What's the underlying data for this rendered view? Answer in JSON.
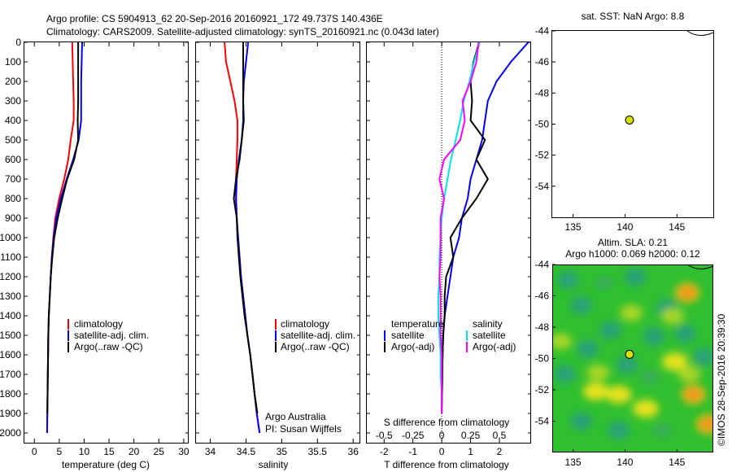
{
  "header": {
    "line1": "Argo profile: CS 5904913_62 20-Sep-2016 20160921_172 49.737S 140.436E",
    "line2": "Climatology: CARS2009. Satellite-adjusted climatology: synTS_20160921.nc (0.043d later)"
  },
  "watermark": "©IMOS 28-Sep-2016 20:39:30",
  "colors": {
    "climatology": "#ff0000",
    "satellite": "#0000ff",
    "argo": "#000000",
    "sal_satellite": "#00e5e5",
    "sal_argo": "#ff00ff",
    "float_marker": "#d8e000"
  },
  "chart_data": [
    {
      "id": "temperature",
      "type": "line",
      "xlabel": "temperature (deg C)",
      "ylabel": "",
      "xlim": [
        -2,
        31
      ],
      "ylim": [
        2050,
        0
      ],
      "xticks": [
        "0",
        "5",
        "10",
        "15",
        "20",
        "25",
        "30"
      ],
      "yticks": [
        "0",
        "100",
        "200",
        "300",
        "400",
        "500",
        "600",
        "700",
        "800",
        "900",
        "1000",
        "1100",
        "1200",
        "1300",
        "1400",
        "1500",
        "1600",
        "1700",
        "1800",
        "1900",
        "2000"
      ],
      "legend": [
        "climatology",
        "satellite-adj. clim.",
        "Argo(..raw -QC)"
      ],
      "series": [
        {
          "name": "climatology",
          "color": "#ff0000",
          "x": [
            7.6,
            7.7,
            7.8,
            7.9,
            7.9,
            7.3,
            6.8,
            6.0,
            5.0,
            4.2,
            3.8,
            3.5,
            3.3,
            3.1,
            2.9,
            2.8,
            2.75,
            2.7,
            2.65,
            2.6,
            2.55
          ],
          "y": [
            0,
            100,
            200,
            300,
            400,
            500,
            600,
            700,
            800,
            900,
            1000,
            1100,
            1200,
            1300,
            1400,
            1500,
            1600,
            1700,
            1800,
            1900,
            2000
          ]
        },
        {
          "name": "satellite-adj. clim.",
          "color": "#0000ff",
          "x": [
            9.6,
            9.5,
            9.4,
            9.4,
            9.4,
            8.9,
            7.8,
            6.5,
            5.3,
            4.4,
            3.9,
            3.5,
            3.3,
            3.1,
            2.9,
            2.8,
            2.75,
            2.7,
            2.65,
            2.6,
            2.55
          ],
          "y": [
            0,
            100,
            200,
            300,
            400,
            500,
            600,
            700,
            800,
            900,
            1000,
            1100,
            1200,
            1300,
            1400,
            1500,
            1600,
            1700,
            1800,
            1900,
            2000
          ]
        },
        {
          "name": "Argo(..raw -QC)",
          "color": "#000000",
          "x": [
            8.8,
            8.8,
            8.8,
            8.8,
            8.7,
            8.8,
            8.0,
            6.6,
            5.6,
            4.7,
            4.0,
            3.6,
            3.3,
            3.1,
            2.9,
            2.8,
            2.75,
            2.7,
            2.65,
            2.6
          ],
          "y": [
            0,
            100,
            200,
            300,
            400,
            500,
            600,
            700,
            800,
            900,
            1000,
            1100,
            1200,
            1300,
            1400,
            1500,
            1600,
            1700,
            1800,
            1900
          ]
        }
      ]
    },
    {
      "id": "salinity",
      "type": "line",
      "xlabel": "salinity",
      "ylabel": "",
      "xlim": [
        33.8,
        36.1
      ],
      "ylim": [
        2050,
        0
      ],
      "xticks": [
        "34",
        "34.5",
        "35",
        "35.5",
        "36"
      ],
      "legend": [
        "climatology",
        "satellite-adj. clim.",
        "Argo(..raw -QC)"
      ],
      "annotation": [
        "Argo Australia",
        "PI: Susan Wijffels"
      ],
      "series": [
        {
          "name": "climatology",
          "color": "#ff0000",
          "x": [
            34.2,
            34.22,
            34.28,
            34.34,
            34.38,
            34.38,
            34.37,
            34.36,
            34.36,
            34.37,
            34.39,
            34.41,
            34.43,
            34.46,
            34.49,
            34.52,
            34.56,
            34.59,
            34.62,
            34.65,
            34.69
          ],
          "y": [
            0,
            100,
            200,
            300,
            400,
            500,
            600,
            700,
            800,
            900,
            1000,
            1100,
            1200,
            1300,
            1400,
            1500,
            1600,
            1700,
            1800,
            1900,
            2000
          ]
        },
        {
          "name": "satellite-adj. clim.",
          "color": "#0000ff",
          "x": [
            34.53,
            34.5,
            34.47,
            34.46,
            34.46,
            34.44,
            34.4,
            34.37,
            34.36,
            34.37,
            34.39,
            34.41,
            34.43,
            34.46,
            34.49,
            34.52,
            34.56,
            34.59,
            34.62,
            34.65,
            34.69
          ],
          "y": [
            0,
            100,
            200,
            300,
            400,
            500,
            600,
            700,
            800,
            900,
            1000,
            1100,
            1200,
            1300,
            1400,
            1500,
            1600,
            1700,
            1800,
            1900,
            2000
          ]
        },
        {
          "name": "Argo(..raw -QC)",
          "color": "#000000",
          "x": [
            34.46,
            34.46,
            34.46,
            34.46,
            34.47,
            34.44,
            34.41,
            34.36,
            34.33,
            34.37,
            34.38,
            34.4,
            34.42,
            34.45,
            34.48,
            34.52,
            34.56,
            34.59,
            34.62,
            34.66
          ],
          "y": [
            0,
            100,
            200,
            300,
            400,
            500,
            600,
            700,
            800,
            900,
            1000,
            1100,
            1200,
            1300,
            1400,
            1500,
            1600,
            1700,
            1800,
            1900
          ]
        }
      ]
    },
    {
      "id": "differences",
      "type": "line",
      "xlabel": "T difference from climatology",
      "x2label": "S difference from climatology",
      "xlim": [
        -2.6,
        3.1
      ],
      "ylim": [
        2050,
        0
      ],
      "xticks": [
        "-2",
        "-1",
        "0",
        "1",
        "2"
      ],
      "x2ticks": [
        "-0.5",
        "-0.25",
        "0",
        "0.25",
        "0.5"
      ],
      "legend_temperature_title": "temperature",
      "legend_salinity_title": "salinity",
      "legend": [
        "satellite",
        "Argo(-adj)",
        "satellite",
        "Argo(-adj)"
      ],
      "series": [
        {
          "name": "temperature satellite",
          "color": "#0000ff",
          "x": [
            3.0,
            2.4,
            1.9,
            1.6,
            1.5,
            1.4,
            1.2,
            1.0,
            0.9,
            0.7,
            0.6,
            0.4,
            0.3,
            0.2,
            0.1,
            0.05,
            0.03,
            0.02,
            0.01,
            0.0
          ],
          "y": [
            0,
            100,
            200,
            300,
            400,
            500,
            600,
            700,
            800,
            900,
            1000,
            1100,
            1200,
            1300,
            1400,
            1500,
            1600,
            1700,
            1800,
            1900
          ]
        },
        {
          "name": "temperature Argo(-adj)",
          "color": "#000000",
          "x": [
            1.3,
            1.1,
            1.0,
            1.05,
            1.0,
            1.5,
            1.2,
            1.6,
            1.2,
            0.7,
            0.3,
            0.4,
            0.15,
            0.1,
            0.1,
            0.05,
            0.03,
            0.02,
            0.01,
            0.0
          ],
          "y": [
            0,
            100,
            200,
            300,
            400,
            500,
            600,
            700,
            800,
            900,
            1000,
            1100,
            1200,
            1300,
            1400,
            1500,
            1600,
            1700,
            1800,
            1900
          ]
        },
        {
          "name": "salinity satellite",
          "color": "#00e5e5",
          "x": [
            0.33,
            0.28,
            0.24,
            0.19,
            0.16,
            0.12,
            0.08,
            0.05,
            0.02,
            0.0,
            -0.01,
            -0.02,
            -0.02,
            -0.03,
            -0.03,
            -0.02,
            -0.01,
            -0.01,
            0.0,
            0.0
          ],
          "y": [
            0,
            100,
            200,
            300,
            400,
            500,
            600,
            700,
            800,
            900,
            1000,
            1100,
            1200,
            1300,
            1400,
            1500,
            1600,
            1700,
            1800,
            1900
          ]
        },
        {
          "name": "salinity Argo(-adj)",
          "color": "#ff00ff",
          "x": [
            0.32,
            0.3,
            0.25,
            0.18,
            0.2,
            0.16,
            0.02,
            -0.02,
            0.02,
            -0.01,
            -0.01,
            -0.01,
            -0.02,
            -0.01,
            -0.01,
            -0.01,
            0.0,
            0.0,
            0.0,
            0.0
          ],
          "y": [
            0,
            100,
            200,
            300,
            400,
            500,
            600,
            700,
            800,
            900,
            1000,
            1100,
            1200,
            1300,
            1400,
            1500,
            1600,
            1700,
            1800,
            1900
          ]
        }
      ]
    },
    {
      "id": "sst_map",
      "type": "scatter",
      "title": "sat. SST: NaN Argo: 8.8",
      "xlim": [
        133,
        148.5
      ],
      "ylim": [
        -56,
        -44
      ],
      "xticks": [
        "135",
        "140",
        "145"
      ],
      "yticks": [
        "-44",
        "-46",
        "-48",
        "-50",
        "-52",
        "-54"
      ],
      "points": [
        {
          "x": 140.436,
          "y": -49.737
        }
      ]
    },
    {
      "id": "sla_map",
      "type": "heatmap",
      "title_line1": "Altim. SLA: 0.21",
      "title_line2": "Argo h1000: 0.069 h2000: 0.12",
      "xlim": [
        133,
        148.5
      ],
      "ylim": [
        -56,
        -44
      ],
      "xticks": [
        "135",
        "140",
        "145"
      ],
      "yticks": [
        "-44",
        "-46",
        "-48",
        "-50",
        "-52",
        "-54"
      ],
      "points": [
        {
          "x": 140.436,
          "y": -49.737
        }
      ],
      "blobs": [
        {
          "x": 134.5,
          "y": -45.0,
          "v": -0.6
        },
        {
          "x": 138.0,
          "y": -45.2,
          "v": -0.4
        },
        {
          "x": 141.0,
          "y": -44.8,
          "v": -0.5
        },
        {
          "x": 146.0,
          "y": -45.8,
          "v": 0.9
        },
        {
          "x": 144.0,
          "y": -46.8,
          "v": -0.6
        },
        {
          "x": 135.8,
          "y": -46.6,
          "v": -0.5
        },
        {
          "x": 140.6,
          "y": -47.1,
          "v": 0.4
        },
        {
          "x": 138.6,
          "y": -48.2,
          "v": -0.6
        },
        {
          "x": 142.8,
          "y": -48.6,
          "v": -0.8
        },
        {
          "x": 145.8,
          "y": -48.4,
          "v": -0.5
        },
        {
          "x": 133.8,
          "y": -48.9,
          "v": 0.3
        },
        {
          "x": 136.4,
          "y": -49.4,
          "v": -0.7
        },
        {
          "x": 147.6,
          "y": -49.9,
          "v": -0.6
        },
        {
          "x": 140.2,
          "y": -50.4,
          "v": -0.5
        },
        {
          "x": 144.8,
          "y": -50.2,
          "v": 0.5
        },
        {
          "x": 134.2,
          "y": -51.0,
          "v": -0.5
        },
        {
          "x": 142.4,
          "y": -51.2,
          "v": -0.4
        },
        {
          "x": 137.2,
          "y": -52.1,
          "v": 0.6
        },
        {
          "x": 139.4,
          "y": -52.3,
          "v": 0.7
        },
        {
          "x": 146.6,
          "y": -52.3,
          "v": 0.9
        },
        {
          "x": 142.0,
          "y": -53.2,
          "v": 0.5
        },
        {
          "x": 135.8,
          "y": -54.0,
          "v": -0.6
        },
        {
          "x": 139.4,
          "y": -54.6,
          "v": -0.5
        },
        {
          "x": 143.6,
          "y": -54.6,
          "v": -0.4
        },
        {
          "x": 148.0,
          "y": -54.2,
          "v": 0.9
        },
        {
          "x": 144.6,
          "y": -47.3,
          "v": 0.3
        },
        {
          "x": 137.4,
          "y": -50.9,
          "v": 0.2
        },
        {
          "x": 146.2,
          "y": -51.0,
          "v": 0.3
        }
      ]
    }
  ]
}
